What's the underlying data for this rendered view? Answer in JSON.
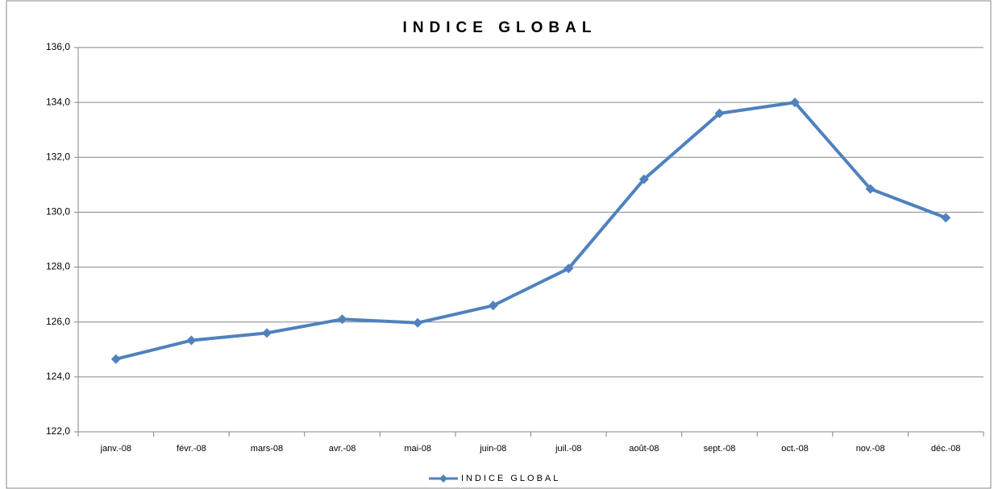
{
  "chart_data": {
    "type": "line",
    "title": "INDICE GLOBAL",
    "categories": [
      "janv.-08",
      "févr.-08",
      "mars-08",
      "avr.-08",
      "mai-08",
      "juin-08",
      "juil.-08",
      "août-08",
      "sept.-08",
      "oct.-08",
      "nov.-08",
      "déc.-08"
    ],
    "series": [
      {
        "name": "INDICE GLOBAL",
        "color": "#4f81bd",
        "values": [
          124.65,
          125.33,
          125.6,
          126.1,
          125.97,
          126.6,
          127.95,
          131.2,
          133.6,
          134.0,
          130.85,
          129.8
        ]
      }
    ],
    "ylim": [
      122,
      136
    ],
    "yticks": [
      {
        "value": 122,
        "label": "122,0"
      },
      {
        "value": 124,
        "label": "124,0"
      },
      {
        "value": 126,
        "label": "126,0"
      },
      {
        "value": 128,
        "label": "128,0"
      },
      {
        "value": 130,
        "label": "130,0"
      },
      {
        "value": 132,
        "label": "132,0"
      },
      {
        "value": 134,
        "label": "134,0"
      },
      {
        "value": 136,
        "label": "136,0"
      }
    ],
    "grid": true,
    "legend": "bottom"
  }
}
